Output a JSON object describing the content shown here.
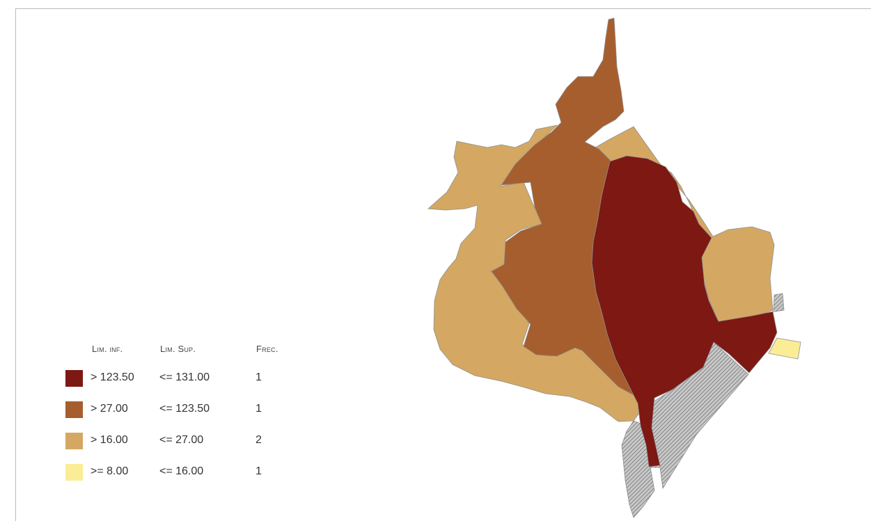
{
  "legend": {
    "header": {
      "lower": "Lim. inf.",
      "upper": "Lim. Sup.",
      "freq": "Frec."
    },
    "rows": [
      {
        "lower": "> 123.50",
        "upper": "<= 131.00",
        "freq": "1",
        "color": "#7d1812"
      },
      {
        "lower": "> 27.00",
        "upper": "<= 123.50",
        "freq": "1",
        "color": "#a65e2e"
      },
      {
        "lower": "> 16.00",
        "upper": "<= 27.00",
        "freq": "2",
        "color": "#d4a862"
      },
      {
        "lower": ">= 8.00",
        "upper": "<= 16.00",
        "freq": "1",
        "color": "#fbed96"
      }
    ]
  },
  "colors": {
    "no_data_hatch": "#9a9a9a",
    "frame_border": "#b9b9b9"
  }
}
